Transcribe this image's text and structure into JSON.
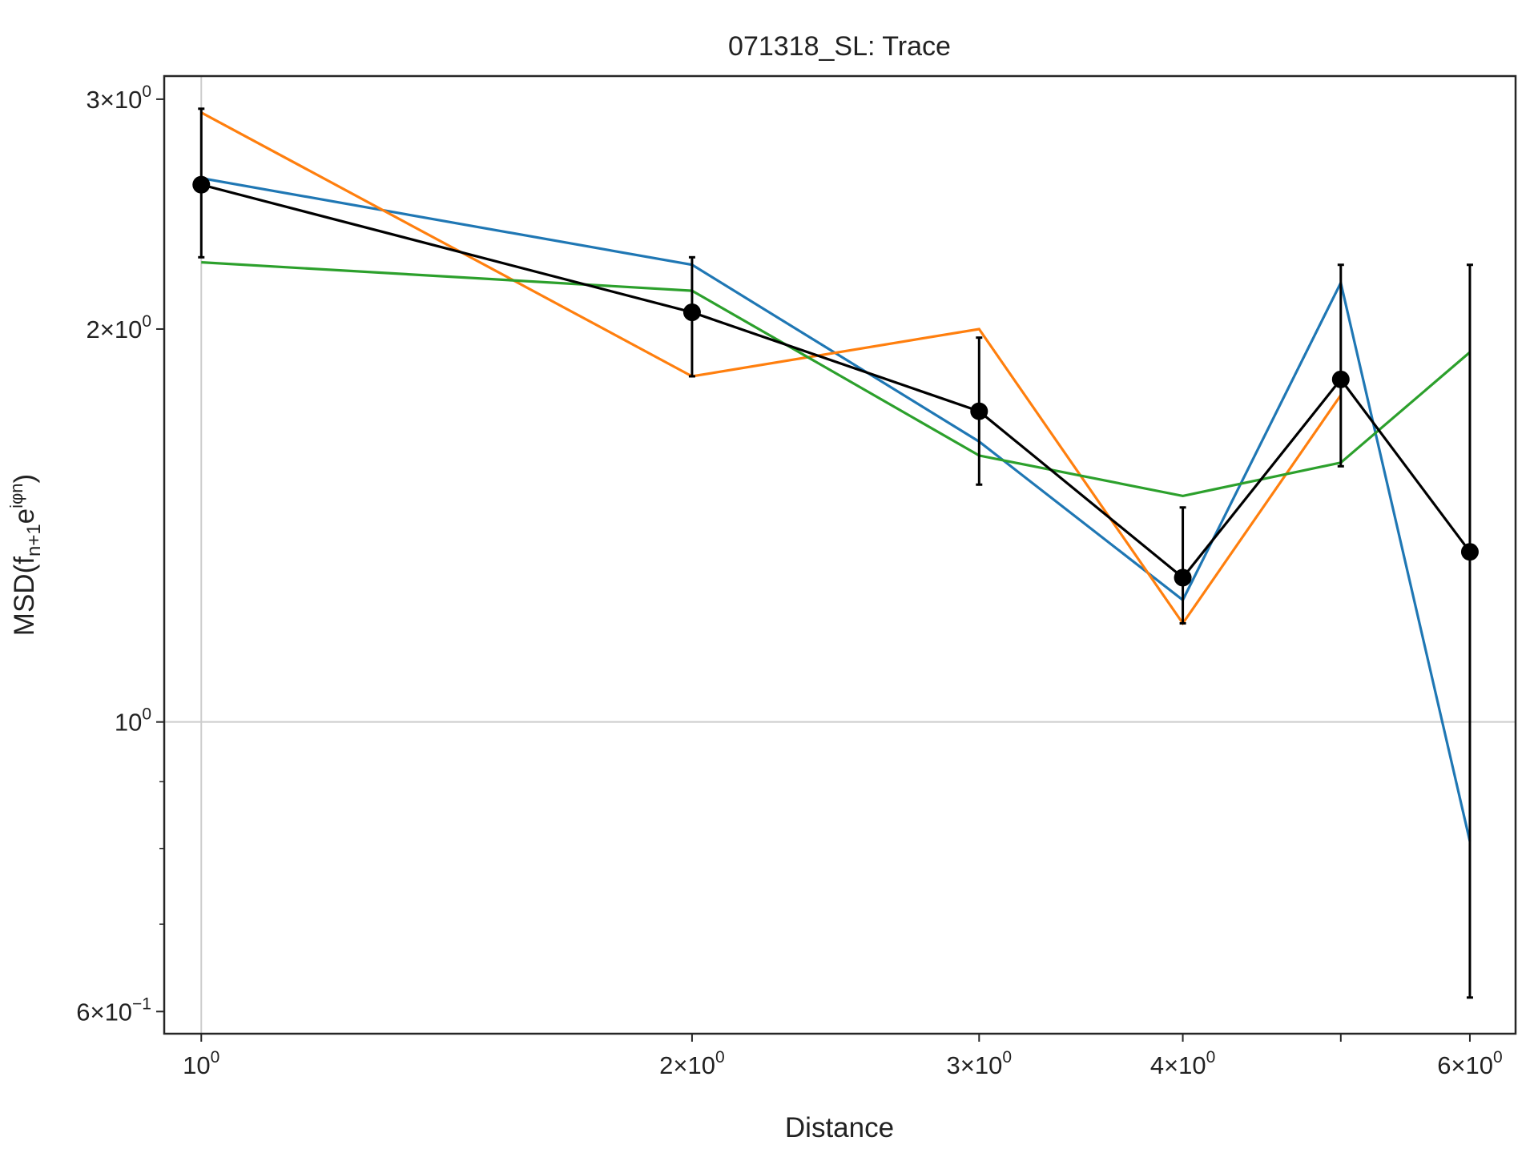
{
  "chart_data": {
    "type": "line",
    "title": "071318_SL: Trace",
    "xlabel": "Distance",
    "ylabel": "MSD(f",
    "ylabel_sub": "n+1",
    "ylabel_tail": "e",
    "ylabel_sup": "iφn",
    "ylabel_close": ")",
    "xscale": "log",
    "yscale": "log",
    "xlim": [
      0.949,
      6.4
    ],
    "ylim": [
      0.577,
      3.125
    ],
    "grid": "minimal",
    "x_ticks": [
      {
        "value": 1,
        "main": "10",
        "exp": "0"
      },
      {
        "value": 2,
        "main": "2×10",
        "exp": "0"
      },
      {
        "value": 3,
        "main": "3×10",
        "exp": "0"
      },
      {
        "value": 4,
        "main": "4×10",
        "exp": "0"
      },
      {
        "value": 5,
        "main": "",
        "exp": ""
      },
      {
        "value": 6,
        "main": "6×10",
        "exp": "0"
      }
    ],
    "y_ticks": [
      {
        "value": 3,
        "main": "3×10",
        "exp": "0"
      },
      {
        "value": 2,
        "main": "2×10",
        "exp": "0"
      },
      {
        "value": 1,
        "main": "10",
        "exp": "0"
      },
      {
        "value": 0.6,
        "main": "6×10",
        "exp": "−1"
      }
    ],
    "y_minor_ticks": [
      0.7,
      0.8,
      0.9
    ],
    "x": [
      1,
      2,
      3,
      4,
      5,
      6
    ],
    "series": [
      {
        "color": "#1f77b4",
        "values": [
          2.61,
          2.24,
          1.64,
          1.24,
          2.17,
          0.81
        ]
      },
      {
        "color": "#ff7f0e",
        "values": [
          2.93,
          1.84,
          2.0,
          1.19,
          1.78,
          null
        ]
      },
      {
        "color": "#2ca02c",
        "values": [
          2.25,
          2.14,
          1.6,
          1.49,
          1.58,
          1.92
        ]
      }
    ],
    "mean": {
      "color": "#000000",
      "values": [
        2.58,
        2.06,
        1.73,
        1.29,
        1.83,
        1.35
      ],
      "err_low": [
        2.27,
        1.84,
        1.52,
        1.19,
        1.57,
        0.615
      ],
      "err_high": [
        2.95,
        2.27,
        1.97,
        1.46,
        2.24,
        2.24
      ]
    }
  }
}
